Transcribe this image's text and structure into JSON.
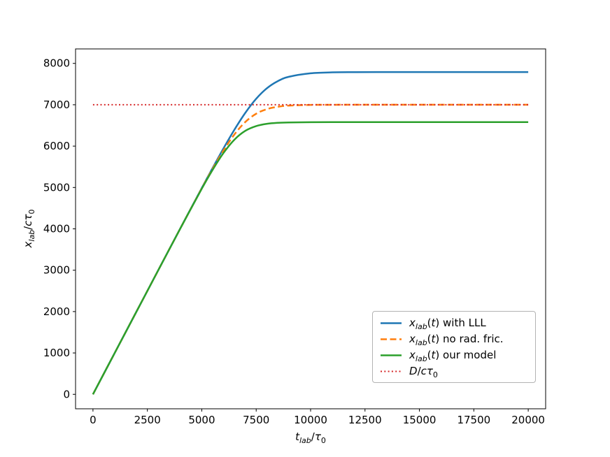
{
  "figure": {
    "background": "#ffffff",
    "text_color": "#000000"
  },
  "chart_data": {
    "type": "line",
    "title": "",
    "grid": false,
    "legend_position": "lower right",
    "xlabel": "t_lab/τ0",
    "ylabel": "x_lab/cτ0",
    "xlabel_segments": [
      [
        "i",
        "t"
      ],
      [
        "sub",
        "lab"
      ],
      [
        "n",
        "/"
      ],
      [
        "i",
        "τ"
      ],
      [
        "subn",
        "0"
      ]
    ],
    "ylabel_segments": [
      [
        "i",
        "x"
      ],
      [
        "sub",
        "lab"
      ],
      [
        "n",
        "/"
      ],
      [
        "i",
        "c"
      ],
      [
        "i",
        "τ"
      ],
      [
        "subn",
        "0"
      ]
    ],
    "xlim": [
      -800,
      20800
    ],
    "ylim": [
      -350,
      8350
    ],
    "xticks": [
      0,
      2500,
      5000,
      7500,
      10000,
      12500,
      15000,
      17500,
      20000
    ],
    "yticks": [
      0,
      1000,
      2000,
      3000,
      4000,
      5000,
      6000,
      7000,
      8000
    ],
    "x": [
      0,
      1000,
      2000,
      3000,
      4000,
      5000,
      5500,
      6000,
      6500,
      7000,
      7500,
      8000,
      8500,
      9000,
      10000,
      11000,
      12000,
      13000,
      14000,
      15000,
      16000,
      17000,
      18000,
      19000,
      20000
    ],
    "series": [
      {
        "label": "x_lab(t) with LLL",
        "segments": [
          [
            "i",
            "x"
          ],
          [
            "sub",
            "lab"
          ],
          [
            "n",
            "("
          ],
          [
            "i",
            "t"
          ],
          [
            "n",
            ") with LLL"
          ]
        ],
        "color": "#1f77b4",
        "style": "solid",
        "width": 2.5,
        "values": [
          0,
          1000,
          2000,
          3000,
          3997,
          4987,
          5474,
          5948,
          6397,
          6804,
          7145,
          7402,
          7573,
          7676,
          7761,
          7783,
          7788,
          7790,
          7790,
          7790,
          7790,
          7790,
          7790,
          7790,
          7790
        ]
      },
      {
        "label": "x_lab(t) no rad. fric.",
        "segments": [
          [
            "i",
            "x"
          ],
          [
            "sub",
            "lab"
          ],
          [
            "n",
            "("
          ],
          [
            "i",
            "t"
          ],
          [
            "n",
            ") no rad. fric."
          ]
        ],
        "color": "#ff7f0e",
        "style": "dashed",
        "width": 2.5,
        "values": [
          0,
          1000,
          2000,
          2999,
          3996,
          4979,
          5453,
          5896,
          6283,
          6584,
          6783,
          6896,
          6952,
          6979,
          6996,
          6999,
          7000,
          7000,
          7000,
          7000,
          7000,
          7000,
          7000,
          7000,
          7000
        ]
      },
      {
        "label": "x_lab(t) our model",
        "segments": [
          [
            "i",
            "x"
          ],
          [
            "sub",
            "lab"
          ],
          [
            "n",
            "("
          ],
          [
            "i",
            "t"
          ],
          [
            "n",
            ") our model"
          ]
        ],
        "color": "#2ca02c",
        "style": "solid",
        "width": 2.5,
        "values": [
          0,
          1000,
          2000,
          3000,
          3996,
          4970,
          5428,
          5836,
          6157,
          6370,
          6485,
          6540,
          6564,
          6573,
          6578,
          6580,
          6580,
          6580,
          6580,
          6580,
          6580,
          6580,
          6580,
          6580,
          6580
        ]
      },
      {
        "label": "D/cτ0",
        "segments": [
          [
            "i",
            "D"
          ],
          [
            "n",
            "/"
          ],
          [
            "i",
            "c"
          ],
          [
            "i",
            "τ"
          ],
          [
            "subn",
            "0"
          ]
        ],
        "color": "#d62728",
        "style": "dotted",
        "width": 2.0,
        "x": [
          0,
          20000
        ],
        "values": [
          7000,
          7000
        ]
      }
    ]
  }
}
